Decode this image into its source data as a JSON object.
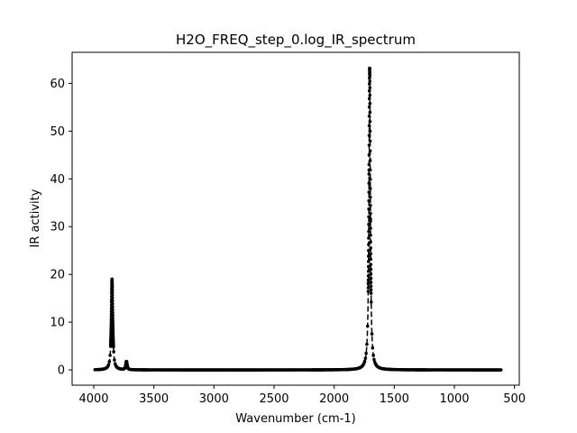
{
  "chart_data": {
    "type": "line",
    "title": "H2O_FREQ_step_0.log_IR_spectrum",
    "xlabel": "Wavenumber (cm-1)",
    "ylabel": "IR activity",
    "xlim": [
      4180,
      460
    ],
    "ylim": [
      66.5,
      -3.2
    ],
    "x_inverted": true,
    "y_inverted": true,
    "xticks": [
      4000,
      3500,
      3000,
      2500,
      2000,
      1500,
      1000,
      500
    ],
    "yticks": [
      0,
      10,
      20,
      30,
      40,
      50,
      60
    ],
    "grid": false,
    "series": [
      {
        "line_color": "#000000",
        "line_style": "dashed",
        "marker": "circle",
        "peaks": [
          {
            "center": 3848,
            "height": 19.0,
            "width": 7
          },
          {
            "center": 3728,
            "height": 1.7,
            "width": 6
          },
          {
            "center": 1705,
            "height": 63.2,
            "width": 7
          }
        ],
        "x_start": 3990,
        "x_end": 610
      }
    ]
  }
}
